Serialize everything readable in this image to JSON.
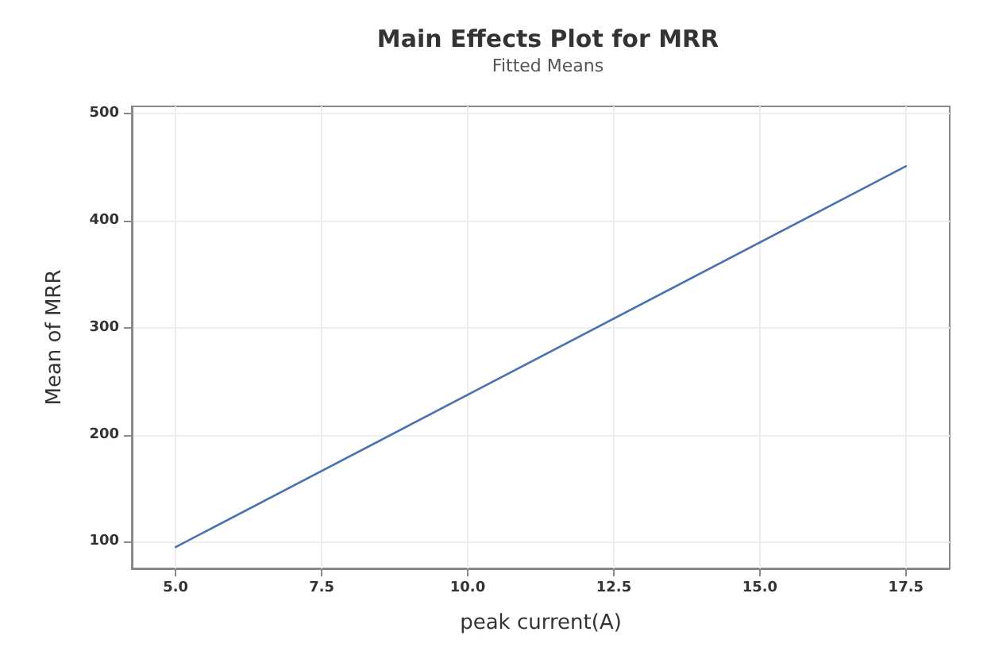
{
  "chart_data": {
    "type": "line",
    "title": "Main Effects Plot for MRR",
    "subtitle": "Fitted Means",
    "xlabel": "peak current(A)",
    "ylabel": "Mean of MRR",
    "x": [
      5,
      17.5
    ],
    "series": [
      {
        "color": "#4a72b0",
        "values": [
          95,
          451
        ]
      }
    ],
    "xlim": [
      4.25,
      18.25
    ],
    "xticks": [
      {
        "value": 5,
        "label": "5.0"
      },
      {
        "value": 7.5,
        "label": "7.5"
      },
      {
        "value": 10,
        "label": "10.0"
      },
      {
        "value": 12.5,
        "label": "12.5"
      },
      {
        "value": 15,
        "label": "15.0"
      },
      {
        "value": 17.5,
        "label": "17.5"
      }
    ],
    "ylim": [
      75,
      507
    ],
    "yticks": [
      100,
      200,
      300,
      400,
      500
    ],
    "grid": true,
    "marker": "none",
    "line_style": "solid"
  }
}
